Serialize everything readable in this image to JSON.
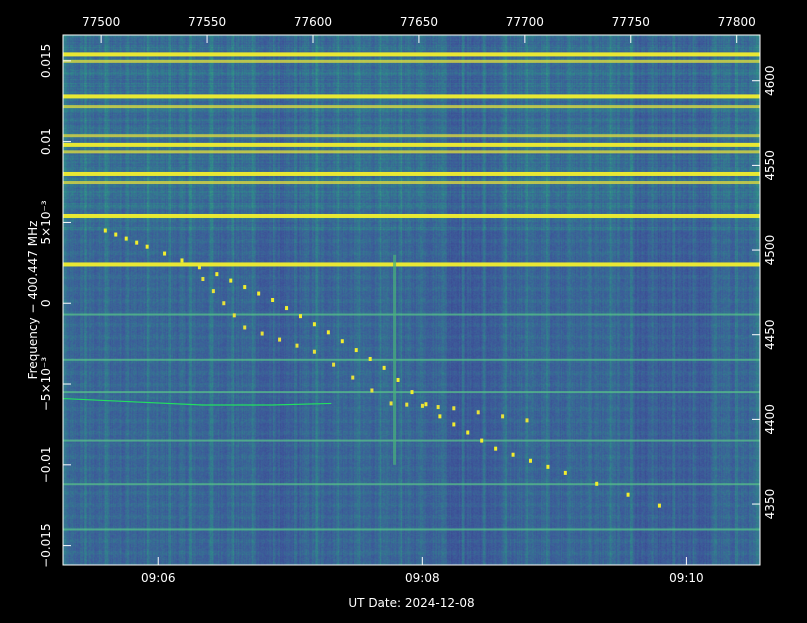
{
  "chart_data": {
    "type": "heatmap",
    "title": "",
    "xlabel": "UT Date: 2024-12-08",
    "ylabel": "Frequency − 400.447 MHz",
    "x_bottom_ticks": [
      "09:06",
      "09:08",
      "09:10"
    ],
    "x_top_ticks": [
      "77500",
      "77550",
      "77600",
      "77650",
      "77700",
      "77750",
      "77800"
    ],
    "y_left_ticks": [
      "0.015",
      "0.01",
      "5×10⁻³",
      "0",
      "−5×10⁻³",
      "−0.01",
      "−0.015"
    ],
    "y_left_values": [
      0.015,
      0.01,
      0.005,
      0,
      -0.005,
      -0.01,
      -0.015
    ],
    "y_right_ticks": [
      "4600",
      "4550",
      "4500",
      "4450",
      "4400",
      "4350"
    ],
    "ylim": [
      -0.0162,
      0.0166
    ],
    "x_top_range": [
      77482,
      77811
    ],
    "y_right_range": [
      4314,
      4627
    ],
    "bottom_tick_seconds": [
      366,
      488,
      610
    ],
    "x_seconds_range": [
      322,
      644
    ],
    "colormap": [
      "#3a3a8c",
      "#3d5a9a",
      "#2f8a8a",
      "#49b07a",
      "#f2ee2e"
    ],
    "persistent_bright_channels": [
      0.0154,
      0.0128,
      0.0098,
      0.008,
      0.0054,
      0.0024
    ],
    "persistent_moderate_channels": [
      0.015,
      0.0122,
      0.0094,
      0.0075,
      0.0104
    ],
    "persistent_dim_channels": [
      -0.0007,
      -0.0035,
      -0.0055,
      -0.0085,
      -0.0112,
      -0.014
    ],
    "drifting_signal": [
      [
        0.06,
        0.0045
      ],
      [
        0.12,
        0.0035
      ],
      [
        0.22,
        0.0018
      ],
      [
        0.3,
        0.0002
      ],
      [
        0.38,
        -0.0018
      ],
      [
        0.46,
        -0.004
      ],
      [
        0.54,
        -0.007
      ],
      [
        0.62,
        -0.009
      ],
      [
        0.72,
        -0.0105
      ],
      [
        0.9,
        -0.0132
      ]
    ],
    "satellite_signal": [
      [
        0.2,
        0.0015
      ],
      [
        0.26,
        -0.0015
      ],
      [
        0.36,
        -0.003
      ],
      [
        0.47,
        -0.0062
      ],
      [
        0.56,
        -0.0065
      ],
      [
        0.7,
        -0.0075
      ]
    ],
    "green_trace": [
      [
        0.0,
        -0.0059
      ],
      [
        0.1,
        -0.0061
      ],
      [
        0.2,
        -0.0063
      ],
      [
        0.3,
        -0.0063
      ],
      [
        0.385,
        -0.0062
      ]
    ],
    "broadband_burst_x": 0.475
  }
}
